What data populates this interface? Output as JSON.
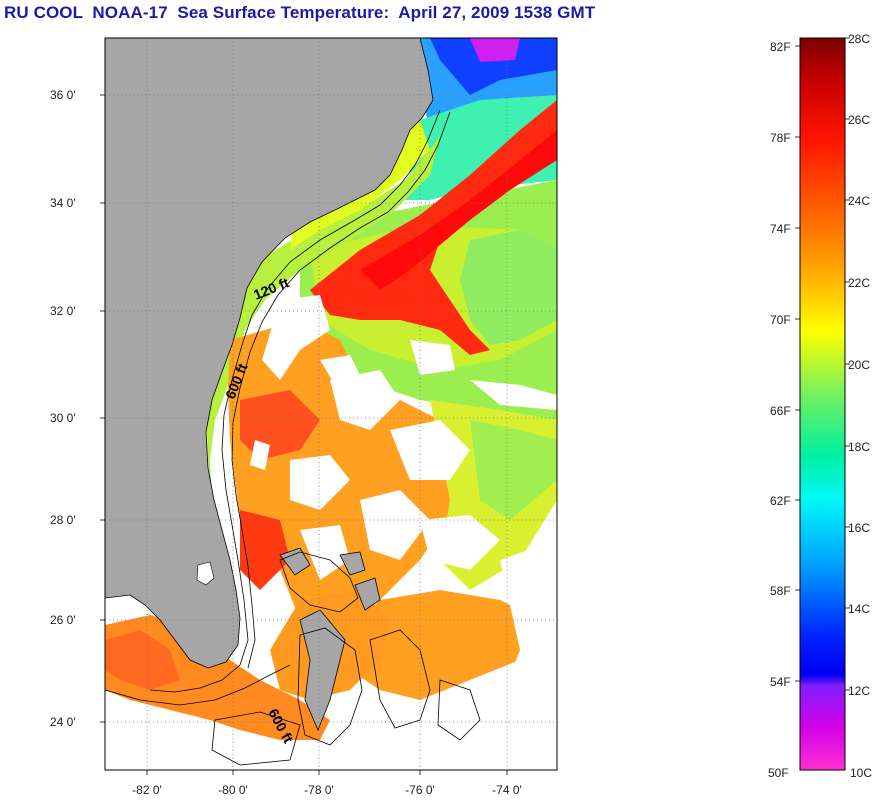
{
  "title": "RU COOL  NOAA-17  Sea Surface Temperature:  April 27, 2009 1538 GMT",
  "map": {
    "lat_labels": [
      "36 0'",
      "34 0'",
      "32 0'",
      "30 0'",
      "28 0'",
      "26 0'",
      "24 0'"
    ],
    "lon_labels": [
      "-82 0'",
      "-80 0'",
      "-78 0'",
      "-76 0'",
      "-74 0'"
    ],
    "contour_labels": [
      "120 ft",
      "600 ft",
      "600 ft"
    ],
    "colors": {
      "land": "#a6a6a6",
      "cloud_no_data": "#ffffff",
      "grid": "#666666"
    }
  },
  "colorbar": {
    "fahrenheit_labels": [
      "82F",
      "78F",
      "74F",
      "70F",
      "66F",
      "62F",
      "58F",
      "54F",
      "50F"
    ],
    "celsius_labels": [
      "28C",
      "26C",
      "24C",
      "22C",
      "20C",
      "18C",
      "16C",
      "14C",
      "12C",
      "10C"
    ],
    "gradient_colors": [
      "#8b0000",
      "#ff1a00",
      "#ff6a00",
      "#ffaa00",
      "#ffff00",
      "#80ff40",
      "#00ff99",
      "#00ffff",
      "#0088ff",
      "#0000ff",
      "#8000ff",
      "#ff00ff"
    ]
  }
}
